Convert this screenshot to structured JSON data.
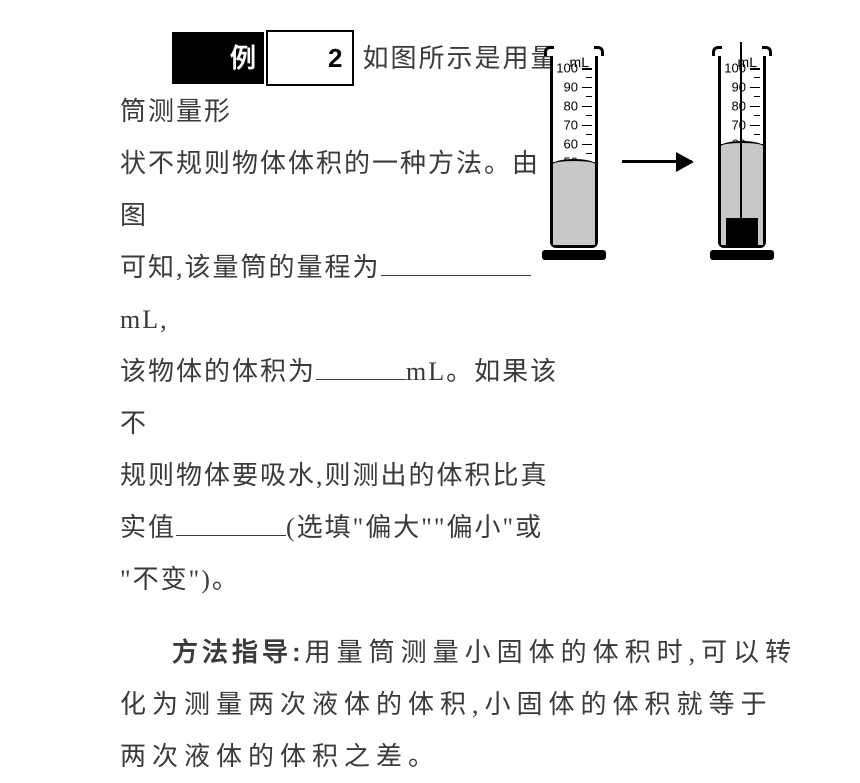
{
  "example": {
    "label": "例",
    "number": "2"
  },
  "text": {
    "p1a": "如图所示是用量筒测量形",
    "p1b": "状不规则物体体积的一种方法。由图",
    "p1c_a": "可知,该量筒的量程为",
    "p1c_b": "mL,",
    "p1d_a": "该物体的体积为",
    "p1d_b": "mL。如果该不",
    "p1e": "规则物体要吸水,则测出的体积比真",
    "p1f_a": "实值",
    "p1f_b": "(选填\"偏大\"\"偏小\"或",
    "p1g": "\"不变\")。"
  },
  "method": {
    "label": "方法指导:",
    "text": "用量筒测量小固体的体积时,可以转化为测量两次液体的体积,小固体的体积就等于两次液体的体积之差。"
  },
  "diagram": {
    "unit": "mL",
    "scale": {
      "min": 10,
      "max": 100,
      "step": 10
    },
    "cylinder_left": {
      "water_level": 50
    },
    "cylinder_right": {
      "water_level": 60,
      "has_object": true,
      "has_string": true
    },
    "colors": {
      "water": "#c8c8c8",
      "outline": "#000000",
      "bg": "#ffffff"
    }
  }
}
